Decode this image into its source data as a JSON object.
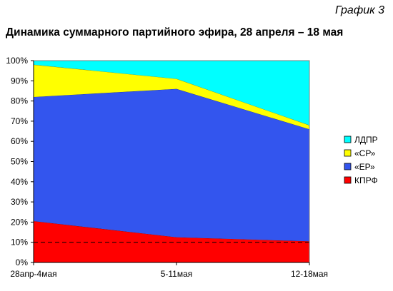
{
  "caption": "График 3",
  "chart_data": {
    "type": "area",
    "stacked": true,
    "title": "Динамика суммарного партийного эфира, 28 апреля – 18 мая",
    "categories": [
      "28апр-4мая",
      "5-11мая",
      "12-18мая"
    ],
    "ylim": [
      0,
      100
    ],
    "ytick_labels": [
      "0%",
      "10%",
      "20%",
      "30%",
      "40%",
      "50%",
      "60%",
      "70%",
      "80%",
      "90%",
      "100%"
    ],
    "series": [
      {
        "name": "КПРФ",
        "color": "#ff0000",
        "values": [
          20.5,
          12.5,
          10.5
        ]
      },
      {
        "name": "«ЕР»",
        "color": "#3355ee",
        "values": [
          61.5,
          73.5,
          55.5
        ]
      },
      {
        "name": "«СР»",
        "color": "#ffff00",
        "values": [
          16,
          5,
          2
        ]
      },
      {
        "name": "ЛДПР",
        "color": "#00ffff",
        "values": [
          2,
          9,
          32
        ]
      }
    ],
    "reference_line": {
      "y": 10,
      "style": "dashed"
    },
    "legend_position": "right",
    "grid": false
  }
}
